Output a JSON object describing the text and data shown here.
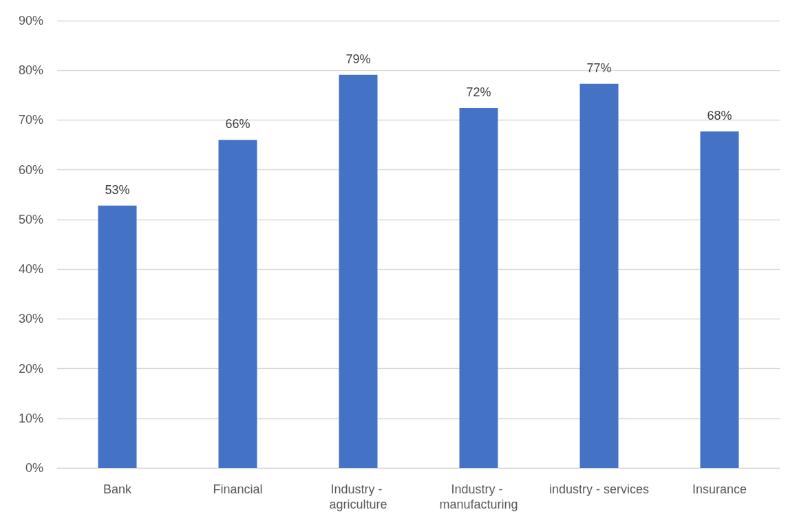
{
  "chart_data": {
    "type": "bar",
    "categories": [
      "Bank",
      "Financial",
      "Industry - agriculture",
      "Industry - manufacturing",
      "industry - services",
      "Insurance"
    ],
    "values": [
      52.8,
      66,
      79.1,
      72.4,
      77.3,
      67.7
    ],
    "value_labels": [
      "53%",
      "66%",
      "79%",
      "72%",
      "77%",
      "68%"
    ],
    "color": "#4472c4",
    "ylim": [
      0,
      90
    ],
    "yticks": [
      {
        "value": 0,
        "label": "0%"
      },
      {
        "value": 10,
        "label": "10%"
      },
      {
        "value": 20,
        "label": "20%"
      },
      {
        "value": 30,
        "label": "30%"
      },
      {
        "value": 40,
        "label": "40%"
      },
      {
        "value": 50,
        "label": "50%"
      },
      {
        "value": 60,
        "label": "60%"
      },
      {
        "value": 70,
        "label": "70%"
      },
      {
        "value": 80,
        "label": "80%"
      },
      {
        "value": 90,
        "label": "90%"
      }
    ],
    "grid": "y"
  }
}
